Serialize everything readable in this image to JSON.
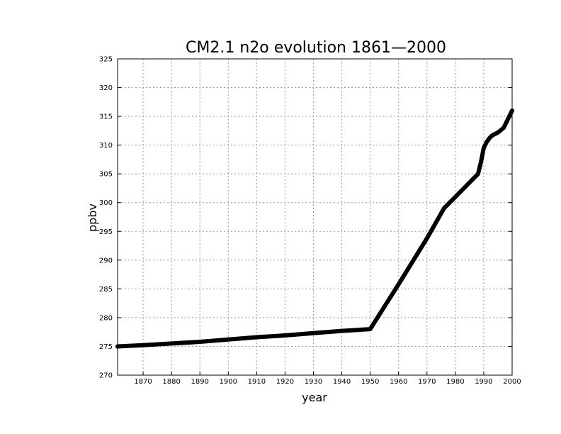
{
  "chart_data": {
    "type": "line",
    "title": "CM2.1 n2o evolution 1861—2000",
    "xlabel": "year",
    "ylabel": "ppbv",
    "xlim": [
      1861,
      2000
    ],
    "ylim": [
      270,
      325
    ],
    "xticks": [
      1870,
      1880,
      1890,
      1900,
      1910,
      1920,
      1930,
      1940,
      1950,
      1960,
      1970,
      1980,
      1990,
      2000
    ],
    "yticks": [
      270,
      275,
      280,
      285,
      290,
      295,
      300,
      305,
      310,
      315,
      320,
      325
    ],
    "grid": true,
    "series": [
      {
        "x": [
          1861,
          1870,
          1880,
          1890,
          1900,
          1910,
          1920,
          1930,
          1940,
          1950,
          1960,
          1970,
          1976,
          1980,
          1985,
          1988,
          1989,
          1990,
          1991,
          1992,
          1993,
          1995,
          1997,
          1998,
          1999,
          2000
        ],
        "y": [
          275.0,
          275.2,
          275.5,
          275.8,
          276.2,
          276.6,
          276.9,
          277.3,
          277.7,
          278.0,
          285.8,
          293.8,
          299.0,
          301.0,
          303.5,
          305.0,
          307.0,
          309.5,
          310.5,
          311.2,
          311.7,
          312.2,
          313.0,
          314.0,
          315.0,
          316.0
        ]
      }
    ]
  }
}
